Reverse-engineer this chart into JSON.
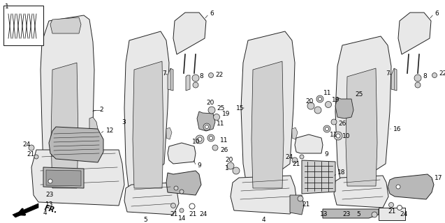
{
  "background_color": "#ffffff",
  "fig_width": 6.37,
  "fig_height": 3.2,
  "dpi": 100,
  "label_fontsize": 6.5,
  "line_color": "#222222",
  "fill_light": "#e8e8e8",
  "fill_mid": "#d0d0d0",
  "fill_dark": "#b8b8b8",
  "fill_darker": "#a0a0a0"
}
